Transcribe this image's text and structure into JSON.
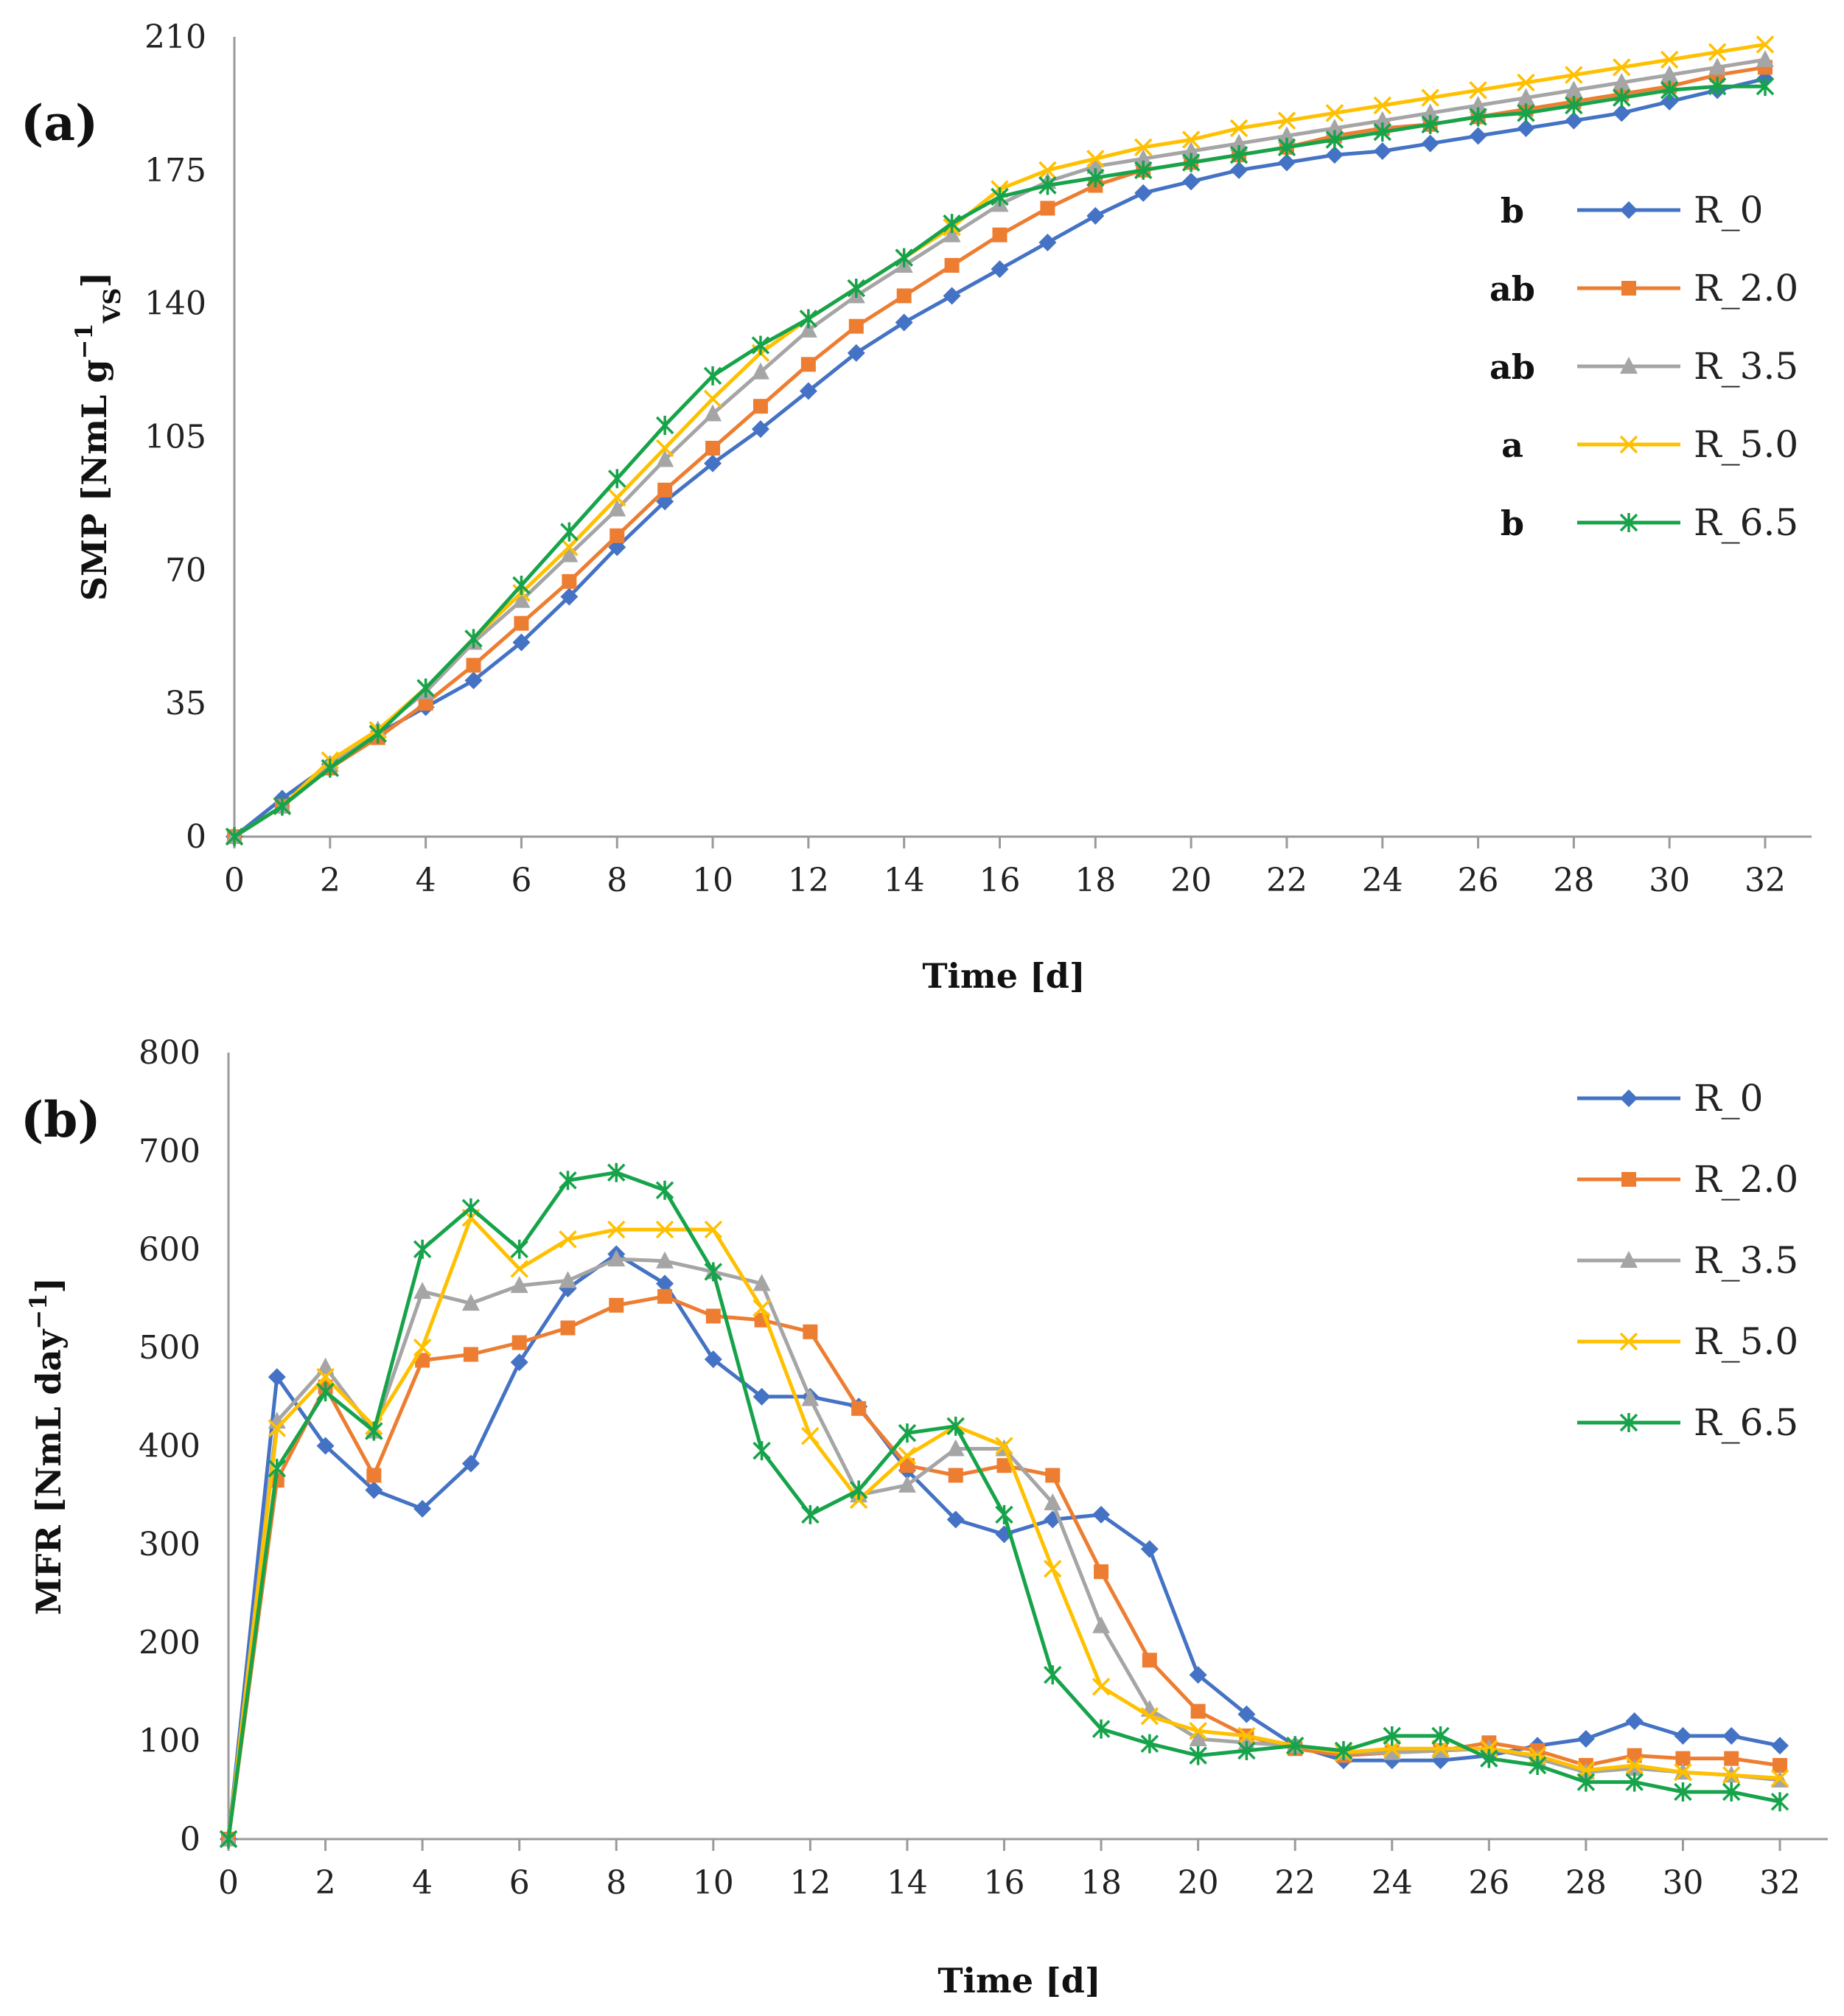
{
  "chart_data": [
    {
      "type": "line",
      "panel": "(a)",
      "panel_letter": "a",
      "title": "",
      "xlabel": "Time [d]",
      "ylabel": "SMP [NmL g⁻¹VS]",
      "ylabel_parts": {
        "main": "SMP [NmL g",
        "sup": "−1",
        "sub": "VS",
        "close": "]"
      },
      "xlim": [
        0,
        32
      ],
      "ylim": [
        0,
        210
      ],
      "xticks": [
        0,
        2,
        4,
        6,
        8,
        10,
        12,
        14,
        16,
        18,
        20,
        22,
        24,
        26,
        28,
        30,
        32
      ],
      "yticks": [
        0,
        35,
        70,
        105,
        140,
        175,
        210
      ],
      "legend_position": "center-right",
      "x": [
        0,
        1,
        2,
        3,
        4,
        5,
        6,
        7,
        8,
        9,
        10,
        11,
        12,
        13,
        14,
        15,
        16,
        17,
        18,
        19,
        20,
        21,
        22,
        23,
        24,
        25,
        26,
        27,
        28,
        29,
        30,
        31,
        32
      ],
      "series": [
        {
          "name": "R_0",
          "significance": "b",
          "color": "#4472C4",
          "marker": "diamond",
          "values": [
            0,
            10,
            19,
            27,
            34,
            41,
            51,
            63,
            76,
            88,
            98,
            107,
            117,
            127,
            135,
            142,
            149,
            156,
            163,
            169,
            172,
            175,
            177,
            179,
            180,
            182,
            184,
            186,
            188,
            190,
            193,
            196,
            199
          ]
        },
        {
          "name": "R_2.0",
          "significance": "ab",
          "color": "#ED7D31",
          "marker": "square",
          "values": [
            0,
            8,
            18,
            26,
            35,
            45,
            56,
            67,
            79,
            91,
            102,
            113,
            124,
            134,
            142,
            150,
            158,
            165,
            171,
            175,
            177,
            179,
            181,
            184,
            186,
            187,
            189,
            191,
            193,
            195,
            197,
            200,
            202
          ]
        },
        {
          "name": "R_3.5",
          "significance": "ab",
          "color": "#A5A5A5",
          "marker": "triangle",
          "values": [
            0,
            8,
            19,
            28,
            38,
            51,
            62,
            74,
            86,
            99,
            111,
            122,
            133,
            142,
            150,
            158,
            166,
            172,
            176,
            178,
            180,
            182,
            184,
            186,
            188,
            190,
            192,
            194,
            196,
            198,
            200,
            202,
            204
          ]
        },
        {
          "name": "R_5.0",
          "significance": "a",
          "color": "#FFC000",
          "marker": "x",
          "values": [
            0,
            8,
            20,
            28,
            39,
            52,
            64,
            76,
            89,
            102,
            115,
            127,
            136,
            144,
            152,
            160,
            170,
            175,
            178,
            181,
            183,
            186,
            188,
            190,
            192,
            194,
            196,
            198,
            200,
            202,
            204,
            206,
            208
          ]
        },
        {
          "name": "R_6.5",
          "significance": "b",
          "color": "#16A34A",
          "marker": "asterisk",
          "values": [
            0,
            8,
            18,
            27,
            39,
            52,
            66,
            80,
            94,
            108,
            121,
            129,
            136,
            144,
            152,
            161,
            168,
            171,
            173,
            175,
            177,
            179,
            181,
            183,
            185,
            187,
            189,
            190,
            192,
            194,
            196,
            197,
            197
          ]
        }
      ]
    },
    {
      "type": "line",
      "panel": "(b)",
      "panel_letter": "b",
      "title": "",
      "xlabel": "Time [d]",
      "ylabel": "MFR [NmL day⁻¹]",
      "ylabel_parts": {
        "main": "MFR [NmL day",
        "sup": "−1",
        "close": "]"
      },
      "xlim": [
        0,
        32
      ],
      "ylim": [
        0,
        800
      ],
      "xticks": [
        0,
        2,
        4,
        6,
        8,
        10,
        12,
        14,
        16,
        18,
        20,
        22,
        24,
        26,
        28,
        30,
        32
      ],
      "yticks": [
        0,
        100,
        200,
        300,
        400,
        500,
        600,
        700,
        800
      ],
      "legend_position": "top-right",
      "x": [
        0,
        1,
        2,
        3,
        4,
        5,
        6,
        7,
        8,
        9,
        10,
        11,
        12,
        13,
        14,
        15,
        16,
        17,
        18,
        19,
        20,
        21,
        22,
        23,
        24,
        25,
        26,
        27,
        28,
        29,
        30,
        31,
        32
      ],
      "series": [
        {
          "name": "R_0",
          "color": "#4472C4",
          "marker": "diamond",
          "values": [
            0,
            470,
            400,
            355,
            336,
            382,
            485,
            560,
            595,
            565,
            488,
            450,
            450,
            440,
            375,
            325,
            310,
            325,
            330,
            295,
            167,
            127,
            95,
            80,
            80,
            80,
            85,
            95,
            102,
            120,
            105,
            105,
            95
          ]
        },
        {
          "name": "R_2.0",
          "color": "#ED7D31",
          "marker": "square",
          "values": [
            0,
            365,
            460,
            370,
            487,
            493,
            505,
            520,
            543,
            552,
            532,
            528,
            516,
            438,
            380,
            370,
            380,
            370,
            272,
            182,
            130,
            105,
            92,
            85,
            88,
            90,
            98,
            90,
            75,
            85,
            82,
            82,
            75
          ]
        },
        {
          "name": "R_3.5",
          "color": "#A5A5A5",
          "marker": "triangle",
          "values": [
            0,
            425,
            480,
            415,
            557,
            545,
            563,
            568,
            590,
            588,
            577,
            565,
            448,
            350,
            360,
            397,
            397,
            342,
            217,
            132,
            102,
            98,
            95,
            88,
            88,
            90,
            92,
            82,
            68,
            72,
            68,
            65,
            60
          ]
        },
        {
          "name": "R_5.0",
          "color": "#FFC000",
          "marker": "x",
          "values": [
            0,
            418,
            470,
            420,
            500,
            632,
            580,
            610,
            620,
            620,
            620,
            540,
            410,
            345,
            390,
            420,
            400,
            275,
            155,
            125,
            110,
            105,
            95,
            88,
            92,
            92,
            92,
            85,
            70,
            75,
            68,
            65,
            62
          ]
        },
        {
          "name": "R_6.5",
          "color": "#16A34A",
          "marker": "asterisk",
          "values": [
            0,
            377,
            455,
            415,
            600,
            642,
            600,
            670,
            678,
            660,
            577,
            395,
            330,
            355,
            413,
            420,
            330,
            167,
            112,
            97,
            85,
            90,
            95,
            90,
            105,
            105,
            82,
            75,
            58,
            58,
            48,
            48,
            38
          ]
        }
      ]
    }
  ]
}
